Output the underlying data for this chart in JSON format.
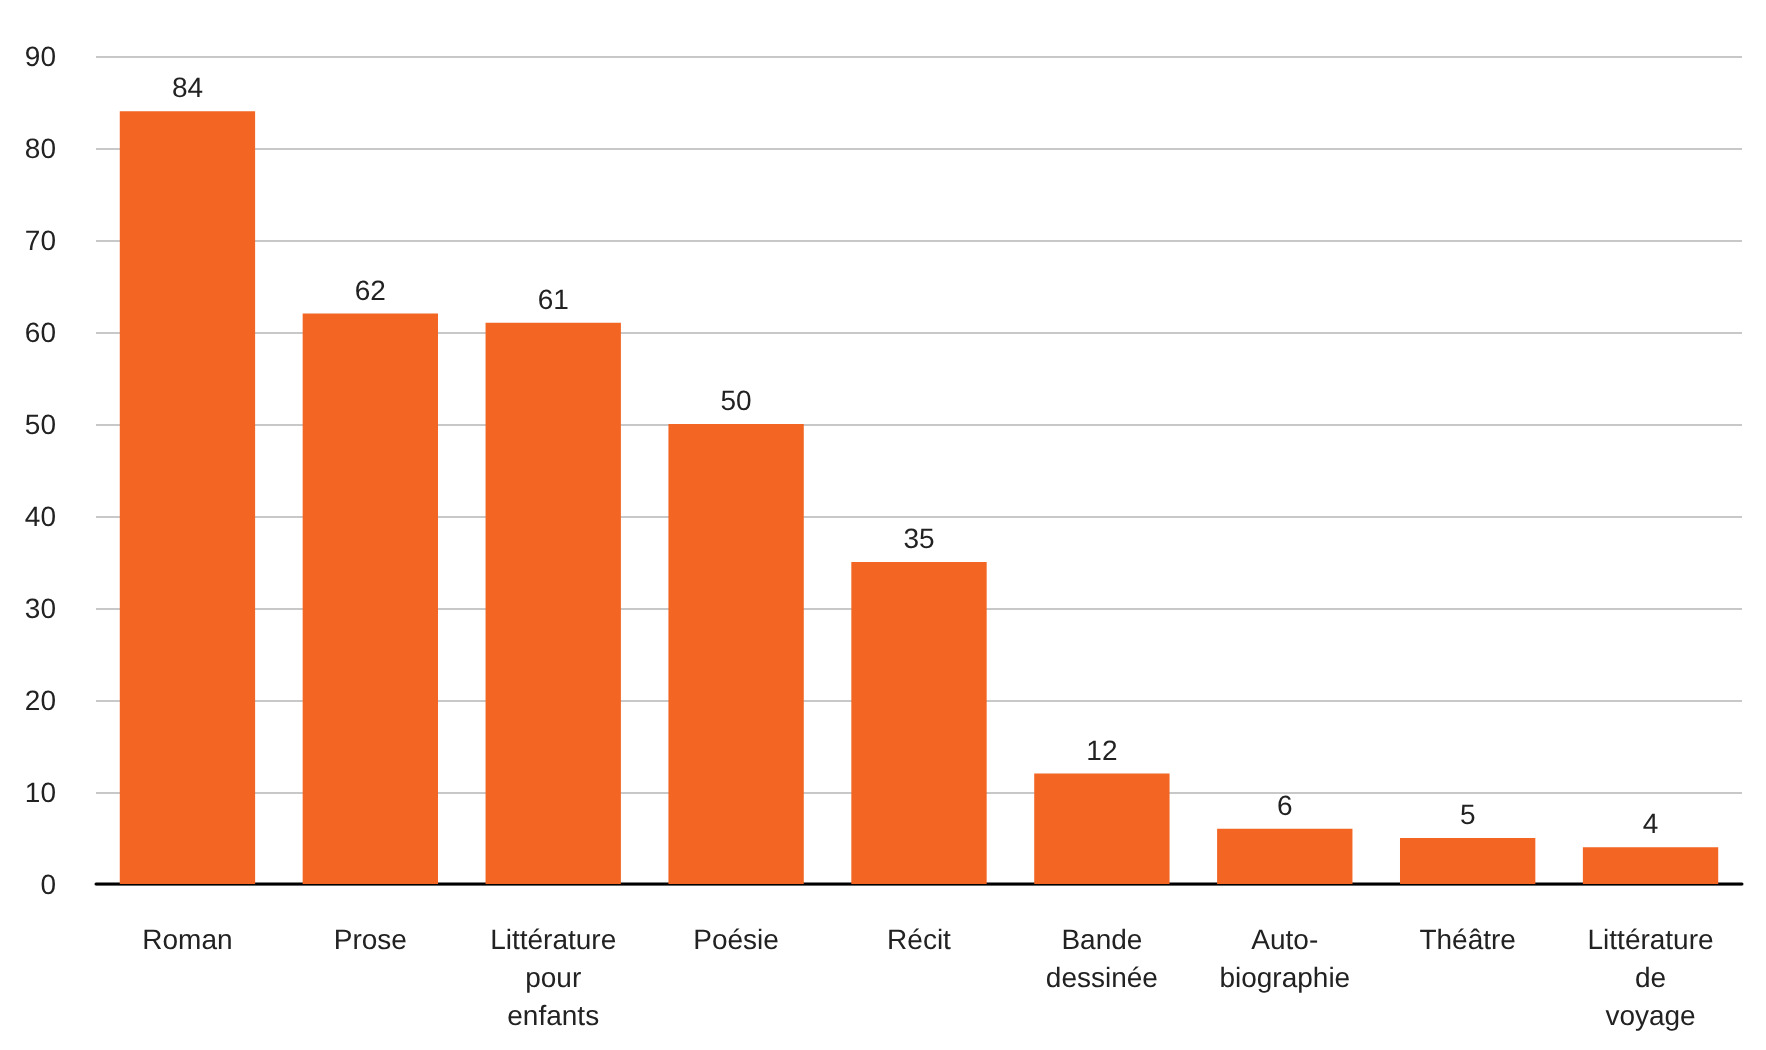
{
  "chart_data": {
    "type": "bar",
    "categories": [
      "Roman",
      "Prose",
      "Littérature\npour\nenfants",
      "Poésie",
      "Récit",
      "Bande\ndessinée",
      "Auto-\nbiographie",
      "Théâtre",
      "Littérature\nde\nvoyage"
    ],
    "values": [
      84,
      62,
      61,
      50,
      35,
      12,
      6,
      5,
      4
    ],
    "color": "#f26522",
    "ylim": [
      0,
      90
    ],
    "yticks": [
      0,
      10,
      20,
      30,
      40,
      50,
      60,
      70,
      80,
      90
    ],
    "grid": "y",
    "data_labels": true
  }
}
